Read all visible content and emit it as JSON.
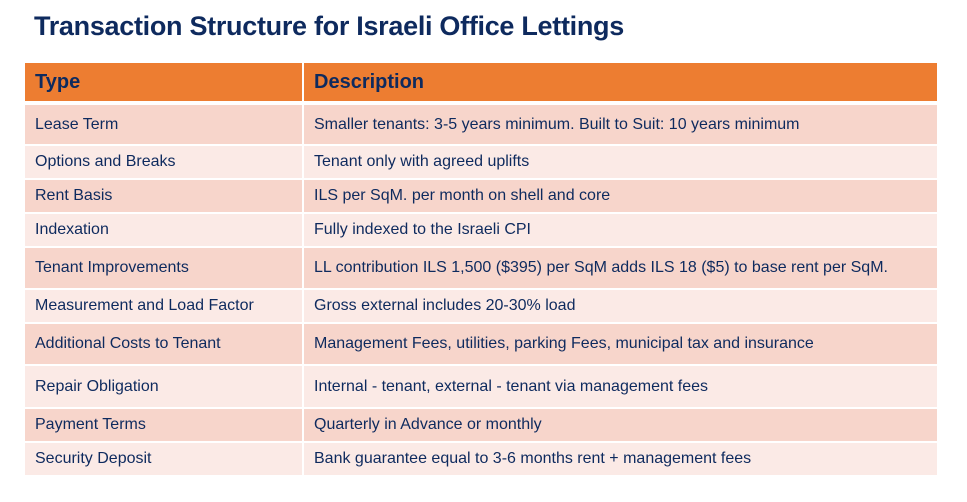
{
  "title": "Transaction Structure for Israeli Office Lettings",
  "colors": {
    "header": "#ED7D31",
    "row_dark": "#F7D5CB",
    "row_light": "#FBEAE6",
    "text": "#0E2A5E"
  },
  "table": {
    "headers": [
      "Type",
      "Description"
    ],
    "rows": [
      {
        "type": "Lease Term",
        "description": "Smaller tenants: 3-5 years minimum. Built to Suit: 10 years minimum"
      },
      {
        "type": "Options and Breaks",
        "description": "Tenant only with agreed uplifts"
      },
      {
        "type": "Rent Basis",
        "description": "ILS per SqM. per month on shell and core"
      },
      {
        "type": "Indexation",
        "description": "Fully indexed to the Israeli CPI"
      },
      {
        "type": "Tenant Improvements",
        "description": "LL contribution ILS 1,500 ($395) per SqM adds ILS 18 ($5) to base rent per SqM."
      },
      {
        "type": "Measurement and Load Factor",
        "description": "Gross external includes 20-30% load"
      },
      {
        "type": "Additional Costs to Tenant",
        "description": "Management Fees,  utilities,  parking Fees, municipal tax and insurance"
      },
      {
        "type": "Repair Obligation",
        "description": "Internal - tenant, external - tenant via management fees"
      },
      {
        "type": "Payment Terms",
        "description": "Quarterly in Advance or monthly"
      },
      {
        "type": "Security Deposit",
        "description": "Bank guarantee equal to 3-6 months rent + management fees"
      }
    ]
  }
}
